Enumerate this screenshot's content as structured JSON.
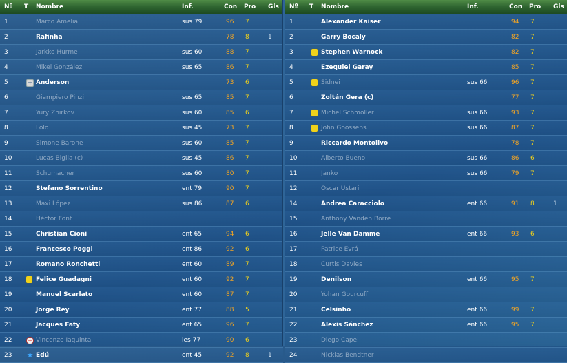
{
  "columns": {
    "num": "Nº",
    "t": "T",
    "nombre": "Nombre",
    "inf": "Inf.",
    "con": "Con",
    "pro": "Pro",
    "gls": "Gls"
  },
  "icons": {
    "yellow_card": "yellow-card-icon",
    "injury": "injury-cross-icon",
    "return": "plus-icon",
    "star": "star-icon"
  },
  "colors": {
    "header": "#2e6430",
    "con": "#f5a623",
    "pro": "#f2d21a",
    "dim_name": "#8fa9c4"
  },
  "left": [
    {
      "num": "1",
      "icon": "",
      "name": "Marco Amelia",
      "dim": true,
      "inf": "sus 79",
      "con": "96",
      "pro": "7",
      "gls": ""
    },
    {
      "num": "2",
      "icon": "",
      "name": "Rafinha",
      "dim": false,
      "inf": "",
      "con": "78",
      "pro": "8",
      "gls": "1"
    },
    {
      "num": "3",
      "icon": "",
      "name": "Jarkko Hurme",
      "dim": true,
      "inf": "sus 60",
      "con": "88",
      "pro": "7",
      "gls": ""
    },
    {
      "num": "4",
      "icon": "",
      "name": "Mikel González",
      "dim": true,
      "inf": "sus 65",
      "con": "86",
      "pro": "7",
      "gls": ""
    },
    {
      "num": "5",
      "icon": "plus",
      "name": "Anderson",
      "dim": false,
      "inf": "",
      "con": "73",
      "pro": "6",
      "gls": ""
    },
    {
      "num": "6",
      "icon": "",
      "name": "Giampiero Pinzi",
      "dim": true,
      "inf": "sus 65",
      "con": "85",
      "pro": "7",
      "gls": ""
    },
    {
      "num": "7",
      "icon": "",
      "name": "Yury Zhirkov",
      "dim": true,
      "inf": "sus 60",
      "con": "85",
      "pro": "6",
      "gls": ""
    },
    {
      "num": "8",
      "icon": "",
      "name": "Lolo",
      "dim": true,
      "inf": "sus 45",
      "con": "73",
      "pro": "7",
      "gls": ""
    },
    {
      "num": "9",
      "icon": "",
      "name": "Simone Barone",
      "dim": true,
      "inf": "sus 60",
      "con": "85",
      "pro": "7",
      "gls": ""
    },
    {
      "num": "10",
      "icon": "",
      "name": "Lucas Biglia (c)",
      "dim": true,
      "inf": "sus 45",
      "con": "86",
      "pro": "7",
      "gls": ""
    },
    {
      "num": "11",
      "icon": "",
      "name": "Schumacher",
      "dim": true,
      "inf": "sus 60",
      "con": "80",
      "pro": "7",
      "gls": ""
    },
    {
      "num": "12",
      "icon": "",
      "name": "Stefano Sorrentino",
      "dim": false,
      "inf": "ent 79",
      "con": "90",
      "pro": "7",
      "gls": ""
    },
    {
      "num": "13",
      "icon": "",
      "name": "Maxi López",
      "dim": true,
      "inf": "sus 86",
      "con": "87",
      "pro": "6",
      "gls": ""
    },
    {
      "num": "14",
      "icon": "",
      "name": "Héctor Font",
      "dim": true,
      "inf": "",
      "con": "",
      "pro": "",
      "gls": ""
    },
    {
      "num": "15",
      "icon": "",
      "name": "Christian Cioni",
      "dim": false,
      "inf": "ent 65",
      "con": "94",
      "pro": "6",
      "gls": ""
    },
    {
      "num": "16",
      "icon": "",
      "name": "Francesco Poggi",
      "dim": false,
      "inf": "ent 86",
      "con": "92",
      "pro": "6",
      "gls": ""
    },
    {
      "num": "17",
      "icon": "",
      "name": "Romano Ronchetti",
      "dim": false,
      "inf": "ent 60",
      "con": "89",
      "pro": "7",
      "gls": ""
    },
    {
      "num": "18",
      "icon": "yellow",
      "name": "Felice Guadagni",
      "dim": false,
      "inf": "ent 60",
      "con": "92",
      "pro": "7",
      "gls": ""
    },
    {
      "num": "19",
      "icon": "",
      "name": "Manuel Scarlato",
      "dim": false,
      "inf": "ent 60",
      "con": "87",
      "pro": "7",
      "gls": ""
    },
    {
      "num": "20",
      "icon": "",
      "name": "Jorge Rey",
      "dim": false,
      "inf": "ent 77",
      "con": "88",
      "pro": "5",
      "gls": ""
    },
    {
      "num": "21",
      "icon": "",
      "name": "Jacques Faty",
      "dim": false,
      "inf": "ent 65",
      "con": "96",
      "pro": "7",
      "gls": ""
    },
    {
      "num": "22",
      "icon": "cross",
      "name": "Vincenzo Iaquinta",
      "dim": true,
      "inf": "les 77",
      "con": "90",
      "pro": "6",
      "gls": ""
    },
    {
      "num": "23",
      "icon": "star",
      "name": "Edú",
      "dim": false,
      "inf": "ent 45",
      "con": "92",
      "pro": "8",
      "gls": "1"
    }
  ],
  "right": [
    {
      "num": "1",
      "icon": "",
      "name": "Alexander Kaiser",
      "dim": false,
      "inf": "",
      "con": "94",
      "pro": "7",
      "gls": ""
    },
    {
      "num": "2",
      "icon": "",
      "name": "Garry Bocaly",
      "dim": false,
      "inf": "",
      "con": "82",
      "pro": "7",
      "gls": ""
    },
    {
      "num": "3",
      "icon": "yellow",
      "name": "Stephen Warnock",
      "dim": false,
      "inf": "",
      "con": "82",
      "pro": "7",
      "gls": ""
    },
    {
      "num": "4",
      "icon": "",
      "name": "Ezequiel Garay",
      "dim": false,
      "inf": "",
      "con": "85",
      "pro": "7",
      "gls": ""
    },
    {
      "num": "5",
      "icon": "yellow",
      "name": "Sidnei",
      "dim": true,
      "inf": "sus 66",
      "con": "96",
      "pro": "7",
      "gls": ""
    },
    {
      "num": "6",
      "icon": "",
      "name": "Zoltán Gera (c)",
      "dim": false,
      "inf": "",
      "con": "77",
      "pro": "7",
      "gls": ""
    },
    {
      "num": "7",
      "icon": "yellow",
      "name": "Michel Schmoller",
      "dim": true,
      "inf": "sus 66",
      "con": "93",
      "pro": "7",
      "gls": ""
    },
    {
      "num": "8",
      "icon": "yellow",
      "name": "John Goossens",
      "dim": true,
      "inf": "sus 66",
      "con": "87",
      "pro": "7",
      "gls": ""
    },
    {
      "num": "9",
      "icon": "",
      "name": "Riccardo Montolivo",
      "dim": false,
      "inf": "",
      "con": "78",
      "pro": "7",
      "gls": ""
    },
    {
      "num": "10",
      "icon": "",
      "name": "Alberto Bueno",
      "dim": true,
      "inf": "sus 66",
      "con": "86",
      "pro": "6",
      "gls": ""
    },
    {
      "num": "11",
      "icon": "",
      "name": "Janko",
      "dim": true,
      "inf": "sus 66",
      "con": "79",
      "pro": "7",
      "gls": ""
    },
    {
      "num": "12",
      "icon": "",
      "name": "Oscar Ustari",
      "dim": true,
      "inf": "",
      "con": "",
      "pro": "",
      "gls": ""
    },
    {
      "num": "14",
      "icon": "",
      "name": "Andrea Caracciolo",
      "dim": false,
      "inf": "ent 66",
      "con": "91",
      "pro": "8",
      "gls": "1"
    },
    {
      "num": "15",
      "icon": "",
      "name": "Anthony Vanden Borre",
      "dim": true,
      "inf": "",
      "con": "",
      "pro": "",
      "gls": ""
    },
    {
      "num": "16",
      "icon": "",
      "name": "Jelle Van Damme",
      "dim": false,
      "inf": "ent 66",
      "con": "93",
      "pro": "6",
      "gls": ""
    },
    {
      "num": "17",
      "icon": "",
      "name": "Patrice Evrá",
      "dim": true,
      "inf": "",
      "con": "",
      "pro": "",
      "gls": ""
    },
    {
      "num": "18",
      "icon": "",
      "name": "Curtis Davies",
      "dim": true,
      "inf": "",
      "con": "",
      "pro": "",
      "gls": ""
    },
    {
      "num": "19",
      "icon": "",
      "name": "Denilson",
      "dim": false,
      "inf": "ent 66",
      "con": "95",
      "pro": "7",
      "gls": ""
    },
    {
      "num": "20",
      "icon": "",
      "name": "Yohan Gourcuff",
      "dim": true,
      "inf": "",
      "con": "",
      "pro": "",
      "gls": ""
    },
    {
      "num": "21",
      "icon": "",
      "name": "Celsinho",
      "dim": false,
      "inf": "ent 66",
      "con": "99",
      "pro": "7",
      "gls": ""
    },
    {
      "num": "22",
      "icon": "",
      "name": "Alexis Sánchez",
      "dim": false,
      "inf": "ent 66",
      "con": "95",
      "pro": "7",
      "gls": ""
    },
    {
      "num": "23",
      "icon": "",
      "name": "Diego Capel",
      "dim": true,
      "inf": "",
      "con": "",
      "pro": "",
      "gls": ""
    },
    {
      "num": "24",
      "icon": "",
      "name": "Nicklas Bendtner",
      "dim": true,
      "inf": "",
      "con": "",
      "pro": "",
      "gls": ""
    }
  ]
}
